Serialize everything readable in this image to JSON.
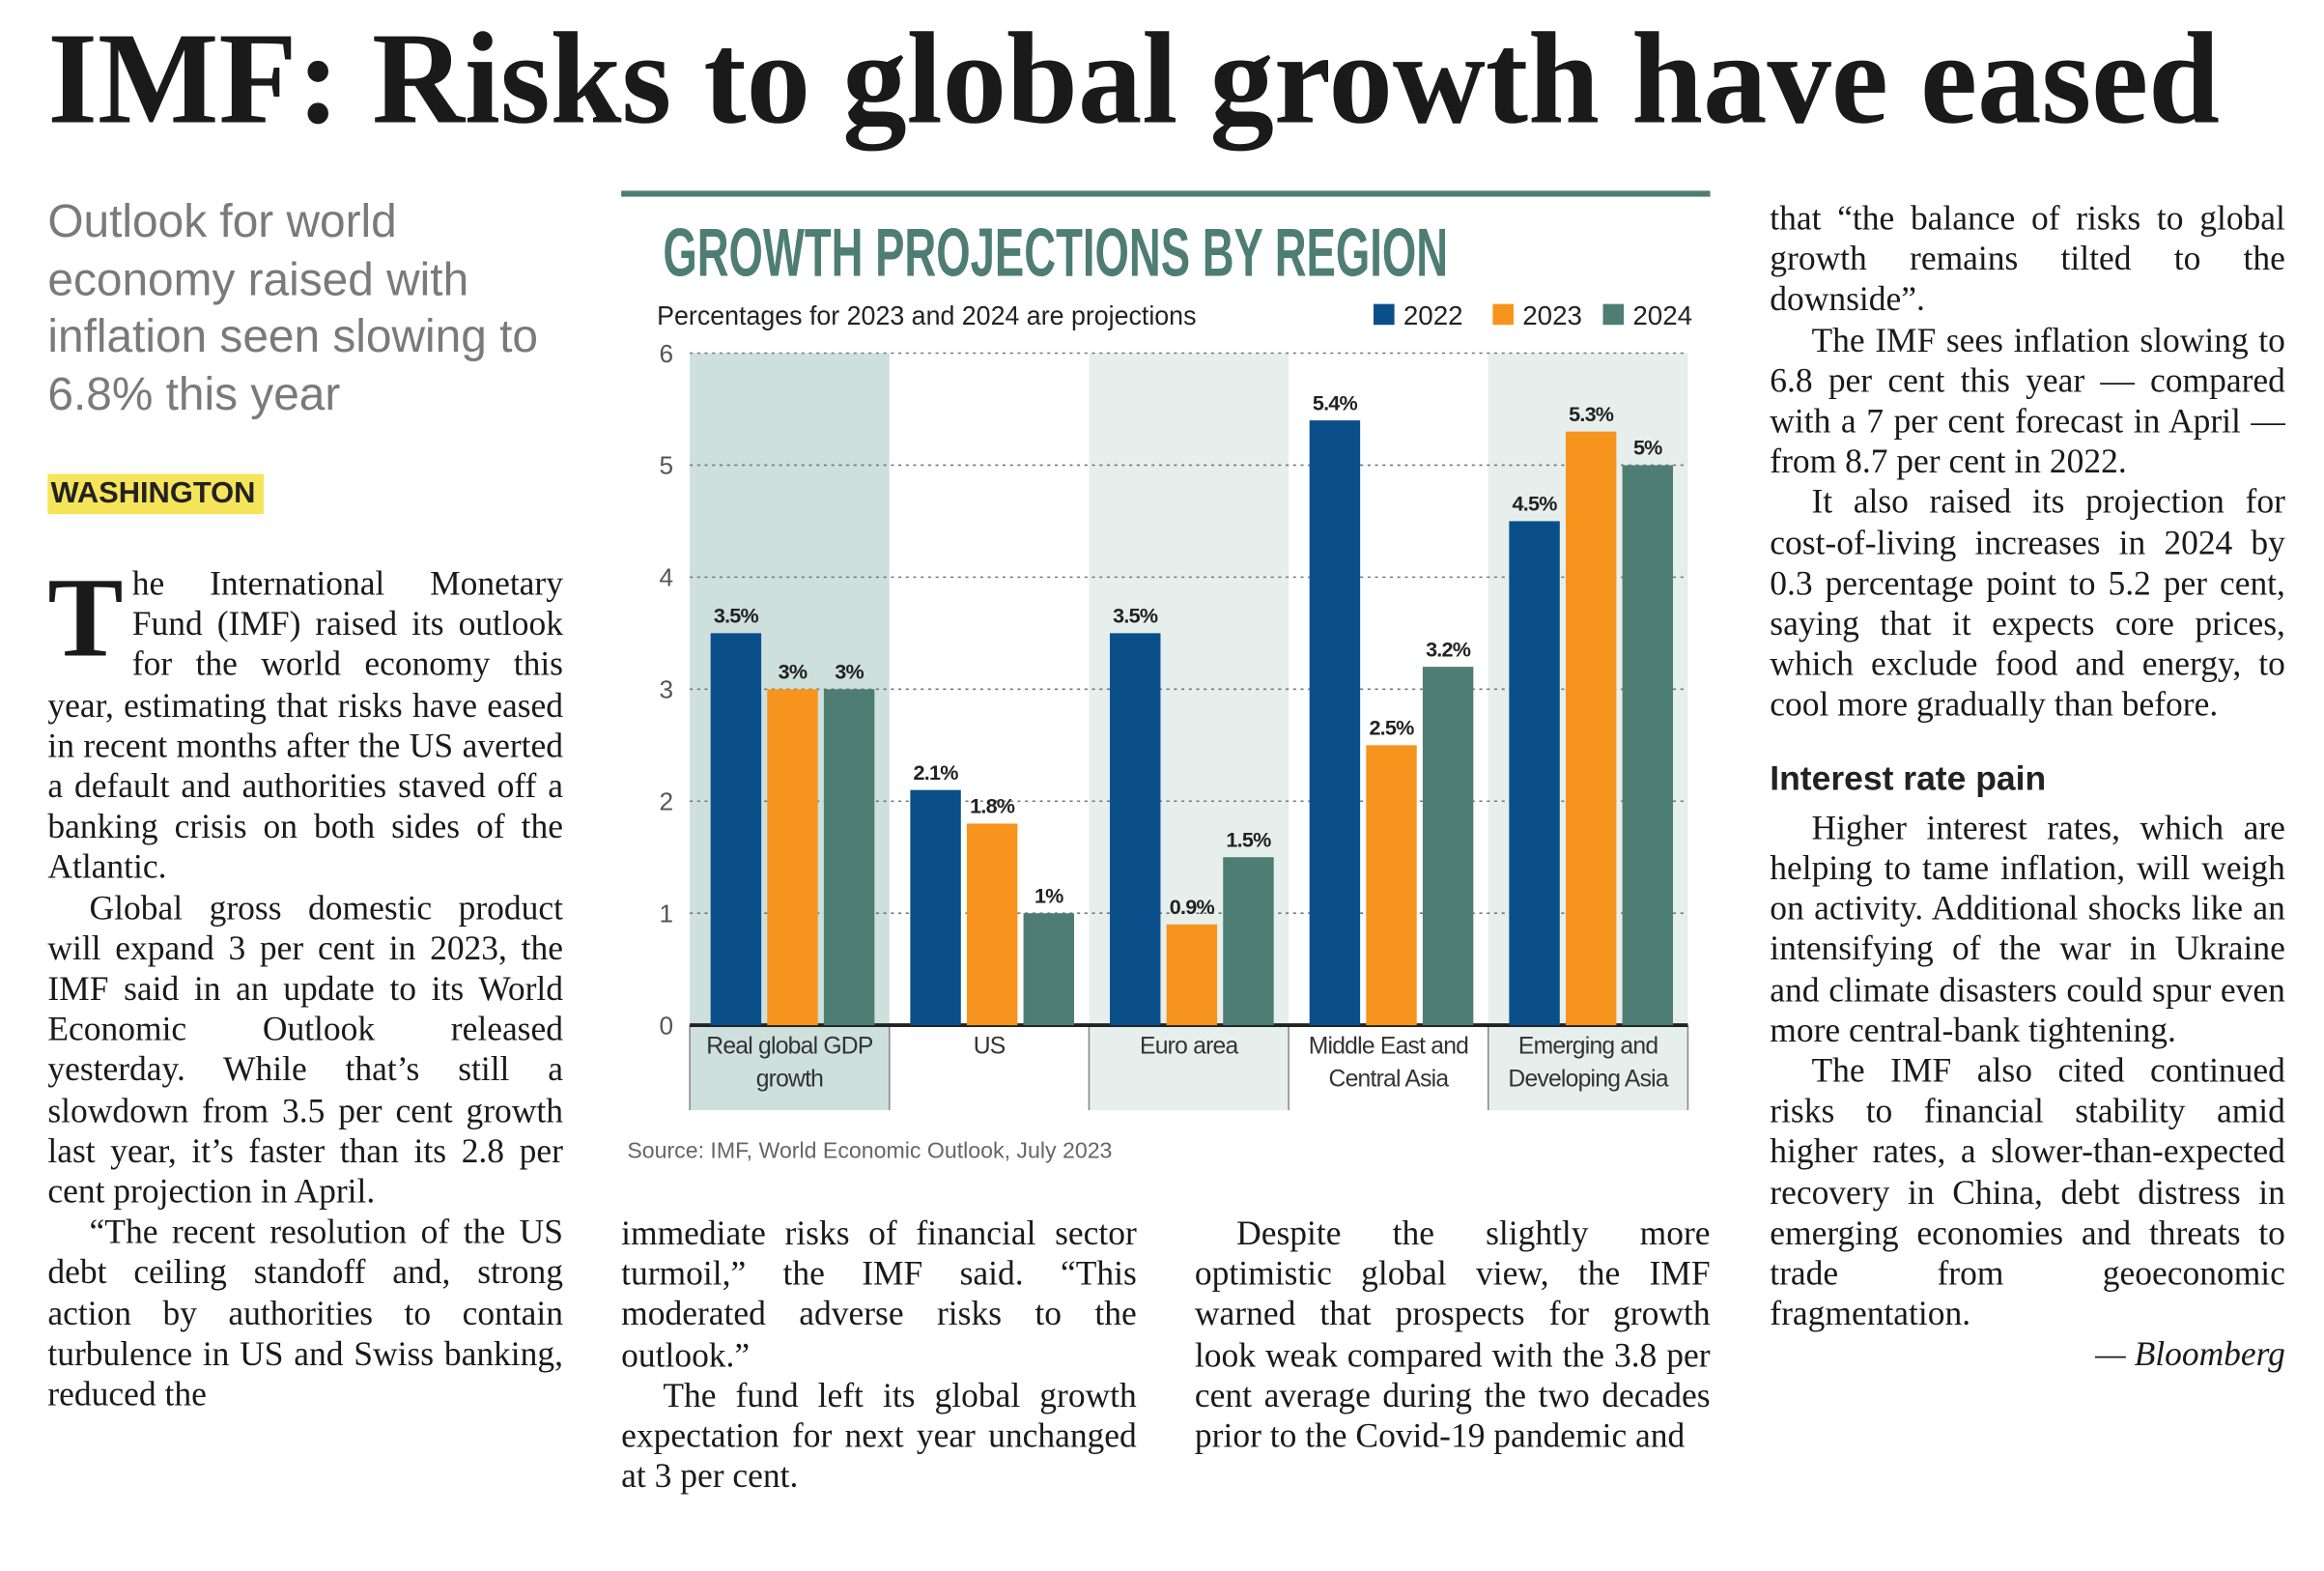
{
  "headline": "IMF: Risks to global growth have eased",
  "deck": "Outlook for world economy raised with inflation seen slowing to 6.8% this year",
  "dateline": "WASHINGTON",
  "article": {
    "col1": [
      "The International Monetary Fund (IMF) raised its outlook for the world economy this year, estimating that risks have eased in recent months after the US averted a default and authorities staved off a banking crisis on both sides of the Atlantic.",
      "Global gross domestic product will expand 3 per cent in 2023, the IMF said in an update to its World Economic Outlook released yesterday. While that’s still a slowdown from 3.5 per cent growth last year, it’s faster than its 2.8 per cent projection in April.",
      "“The recent resolution of the US debt ceiling standoff and, strong action by authorities to contain turbulence in US and Swiss banking, reduced the"
    ],
    "col2": [
      "immediate risks of financial sector turmoil,” the IMF said. “This moderated adverse risks to the outlook.”",
      "The fund left its global growth expectation for next year unchanged at 3 per cent."
    ],
    "col3": [
      "Despite the slightly more optimistic global view, the IMF warned that prospects for growth look weak compared with the 3.8 per cent average during the two decades prior to the Covid-19 pandemic and"
    ],
    "col4": [
      "that “the balance of risks to global growth remains tilted to the downside”.",
      "The IMF sees inflation slowing to 6.8 per cent this year — compared with a 7 per cent forecast in April — from 8.7 per cent in 2022.",
      "It also raised its projection for cost-of-living increases in 2024 by 0.3 percentage point to 5.2 per cent, saying that it expects core prices, which exclude food and energy, to cool more gradually than before."
    ],
    "subhead": "Interest rate pain",
    "col4_after_subhead": [
      "Higher interest rates, which are helping to tame inflation, will weigh on activity. Additional shocks like an intensifying of the war in Ukraine and climate disasters could spur even more central-bank tightening.",
      "The IMF also cited continued risks to financial stability amid higher rates, a slower-than-expected recovery in China, debt distress in emerging economies and threats to trade from geoeconomic fragmentation."
    ],
    "credit": "— Bloomberg"
  },
  "chart_data": {
    "type": "bar",
    "title": "GROWTH PROJECTIONS BY REGION",
    "subtitle": "Percentages for 2023 and 2024 are projections",
    "source": "Source: IMF, World Economic Outlook, July 2023",
    "categories": [
      "Real global GDP growth",
      "US",
      "Euro area",
      "Middle East and Central Asia",
      "Emerging and Developing Asia"
    ],
    "series": [
      {
        "name": "2022",
        "color": "#0b4f8a",
        "values": [
          3.5,
          2.1,
          3.5,
          5.4,
          4.5
        ],
        "value_labels": [
          "3.5%",
          "2.1%",
          "3.5%",
          "5.4%",
          "4.5%"
        ]
      },
      {
        "name": "2023",
        "color": "#f7941d",
        "values": [
          3,
          1.8,
          0.9,
          2.5,
          5.3
        ],
        "value_labels": [
          "3%",
          "1.8%",
          "0.9%",
          "2.5%",
          "5.3%"
        ]
      },
      {
        "name": "2024",
        "color": "#4e7d74",
        "values": [
          3,
          1,
          1.5,
          3.2,
          5
        ],
        "value_labels": [
          "3%",
          "1%",
          "1.5%",
          "3.2%",
          "5%"
        ]
      }
    ],
    "ylim": [
      0,
      6
    ],
    "yticks": [
      0,
      1,
      2,
      3,
      4,
      5,
      6
    ],
    "grid": true,
    "legend": "top-right"
  }
}
